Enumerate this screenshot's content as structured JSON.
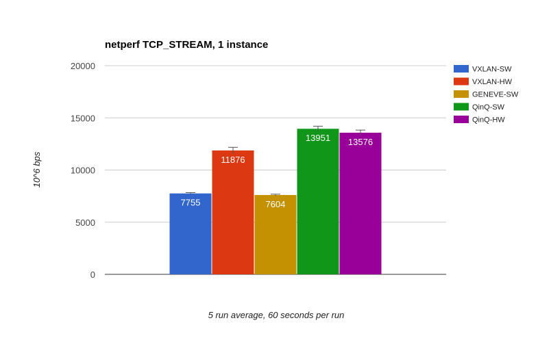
{
  "chart_data": {
    "type": "bar",
    "title": "netperf TCP_STREAM, 1 instance",
    "xlabel": "5 run average, 60 seconds per run",
    "ylabel": "10^6 bps",
    "ylim": [
      0,
      20000
    ],
    "yticks": [
      0,
      5000,
      10000,
      15000,
      20000
    ],
    "grid": true,
    "legend_position": "right",
    "series": [
      {
        "name": "VXLAN-SW",
        "value": 7755,
        "error": 80,
        "color": "#3366cc"
      },
      {
        "name": "VXLAN-HW",
        "value": 11876,
        "error": 300,
        "color": "#dc3912"
      },
      {
        "name": "GENEVE-SW",
        "value": 7604,
        "error": 80,
        "color": "#c49102"
      },
      {
        "name": "QinQ-SW",
        "value": 13951,
        "error": 250,
        "color": "#109618"
      },
      {
        "name": "QinQ-HW",
        "value": 13576,
        "error": 250,
        "color": "#990099"
      }
    ]
  }
}
